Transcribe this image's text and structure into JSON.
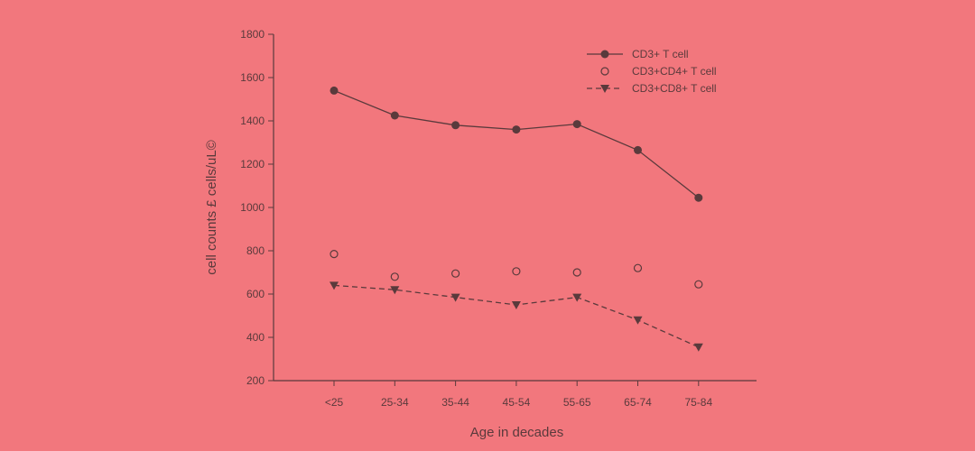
{
  "chart_data": {
    "type": "line",
    "xlabel": "Age in decades",
    "ylabel": "cell counts £ cells/uL©",
    "ylim": [
      200,
      1800
    ],
    "yticks": [
      200,
      400,
      600,
      800,
      1000,
      1200,
      1400,
      1600,
      1800
    ],
    "categories": [
      "<25",
      "25-34",
      "35-44",
      "45-54",
      "55-65",
      "65-74",
      "75-84"
    ],
    "series": [
      {
        "name": "CD3+ T cell",
        "marker": "filled-circle",
        "line": "solid",
        "values": [
          1540,
          1425,
          1380,
          1360,
          1385,
          1265,
          1045
        ]
      },
      {
        "name": "CD3+CD4+ T cell",
        "marker": "open-circle",
        "line": "none",
        "values": [
          785,
          680,
          695,
          705,
          700,
          720,
          645
        ]
      },
      {
        "name": "CD3+CD8+ T cell",
        "marker": "filled-triangle-down",
        "line": "dashed",
        "values": [
          640,
          620,
          585,
          550,
          585,
          480,
          355
        ]
      }
    ],
    "legend_position": "top-right",
    "grid": false,
    "colors": {
      "background": "#f2777d",
      "ink": "#5a3a3c"
    }
  }
}
